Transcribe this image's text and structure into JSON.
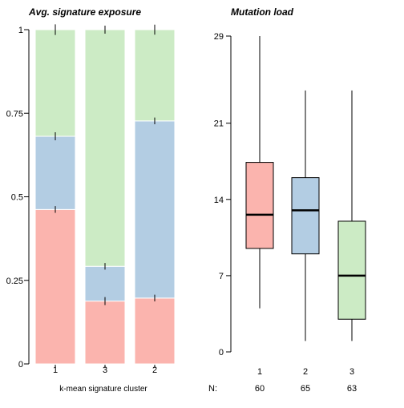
{
  "chart_data": [
    {
      "type": "bar",
      "stacked": true,
      "title": "Avg. signature exposure",
      "xlabel": "k-mean signature cluster",
      "ylabel": "",
      "categories": [
        "1",
        "3",
        "2"
      ],
      "ylim": [
        0,
        1
      ],
      "yticks": [
        {
          "value": 0,
          "label": "0"
        },
        {
          "value": 0.25,
          "label": "0.25"
        },
        {
          "value": 0.5,
          "label": "0.5"
        },
        {
          "value": 0.75,
          "label": "0.75"
        },
        {
          "value": 1,
          "label": "1"
        }
      ],
      "grid": false,
      "series": [
        {
          "color": "#FBB4AE",
          "values": [
            0.462,
            0.188,
            0.197
          ],
          "error": [
            0.01,
            0.012,
            0.01
          ]
        },
        {
          "color": "#B3CDE3",
          "values": [
            0.219,
            0.104,
            0.53
          ],
          "error": [
            0.012,
            0.01,
            0.01
          ]
        },
        {
          "color": "#CCEBC5",
          "values": [
            0.319,
            0.708,
            0.273
          ],
          "error": [
            0.016,
            0.012,
            0.015
          ]
        }
      ]
    },
    {
      "type": "boxplot",
      "title": "Mutation load",
      "xlabel": "",
      "ylabel": "",
      "categories": [
        "1",
        "2",
        "3"
      ],
      "ylim": [
        0,
        29
      ],
      "yticks": [
        {
          "value": 0,
          "label": "0"
        },
        {
          "value": 7,
          "label": "7"
        },
        {
          "value": 14,
          "label": "14"
        },
        {
          "value": 21,
          "label": "21"
        },
        {
          "value": 29,
          "label": "29"
        }
      ],
      "grid": false,
      "boxes": [
        {
          "category": "1",
          "color": "#FBB4AE",
          "min": 4.0,
          "q1": 9.5,
          "median": 12.6,
          "q3": 17.4,
          "max": 29.0
        },
        {
          "category": "2",
          "color": "#B3CDE3",
          "min": 1.0,
          "q1": 9.0,
          "median": 13.0,
          "q3": 16.0,
          "max": 24.0
        },
        {
          "category": "3",
          "color": "#CCEBC5",
          "min": 1.0,
          "q1": 3.0,
          "median": 7.0,
          "q3": 12.0,
          "max": 24.0
        }
      ],
      "n_label": "N:",
      "n_values": [
        "60",
        "65",
        "63"
      ]
    }
  ]
}
